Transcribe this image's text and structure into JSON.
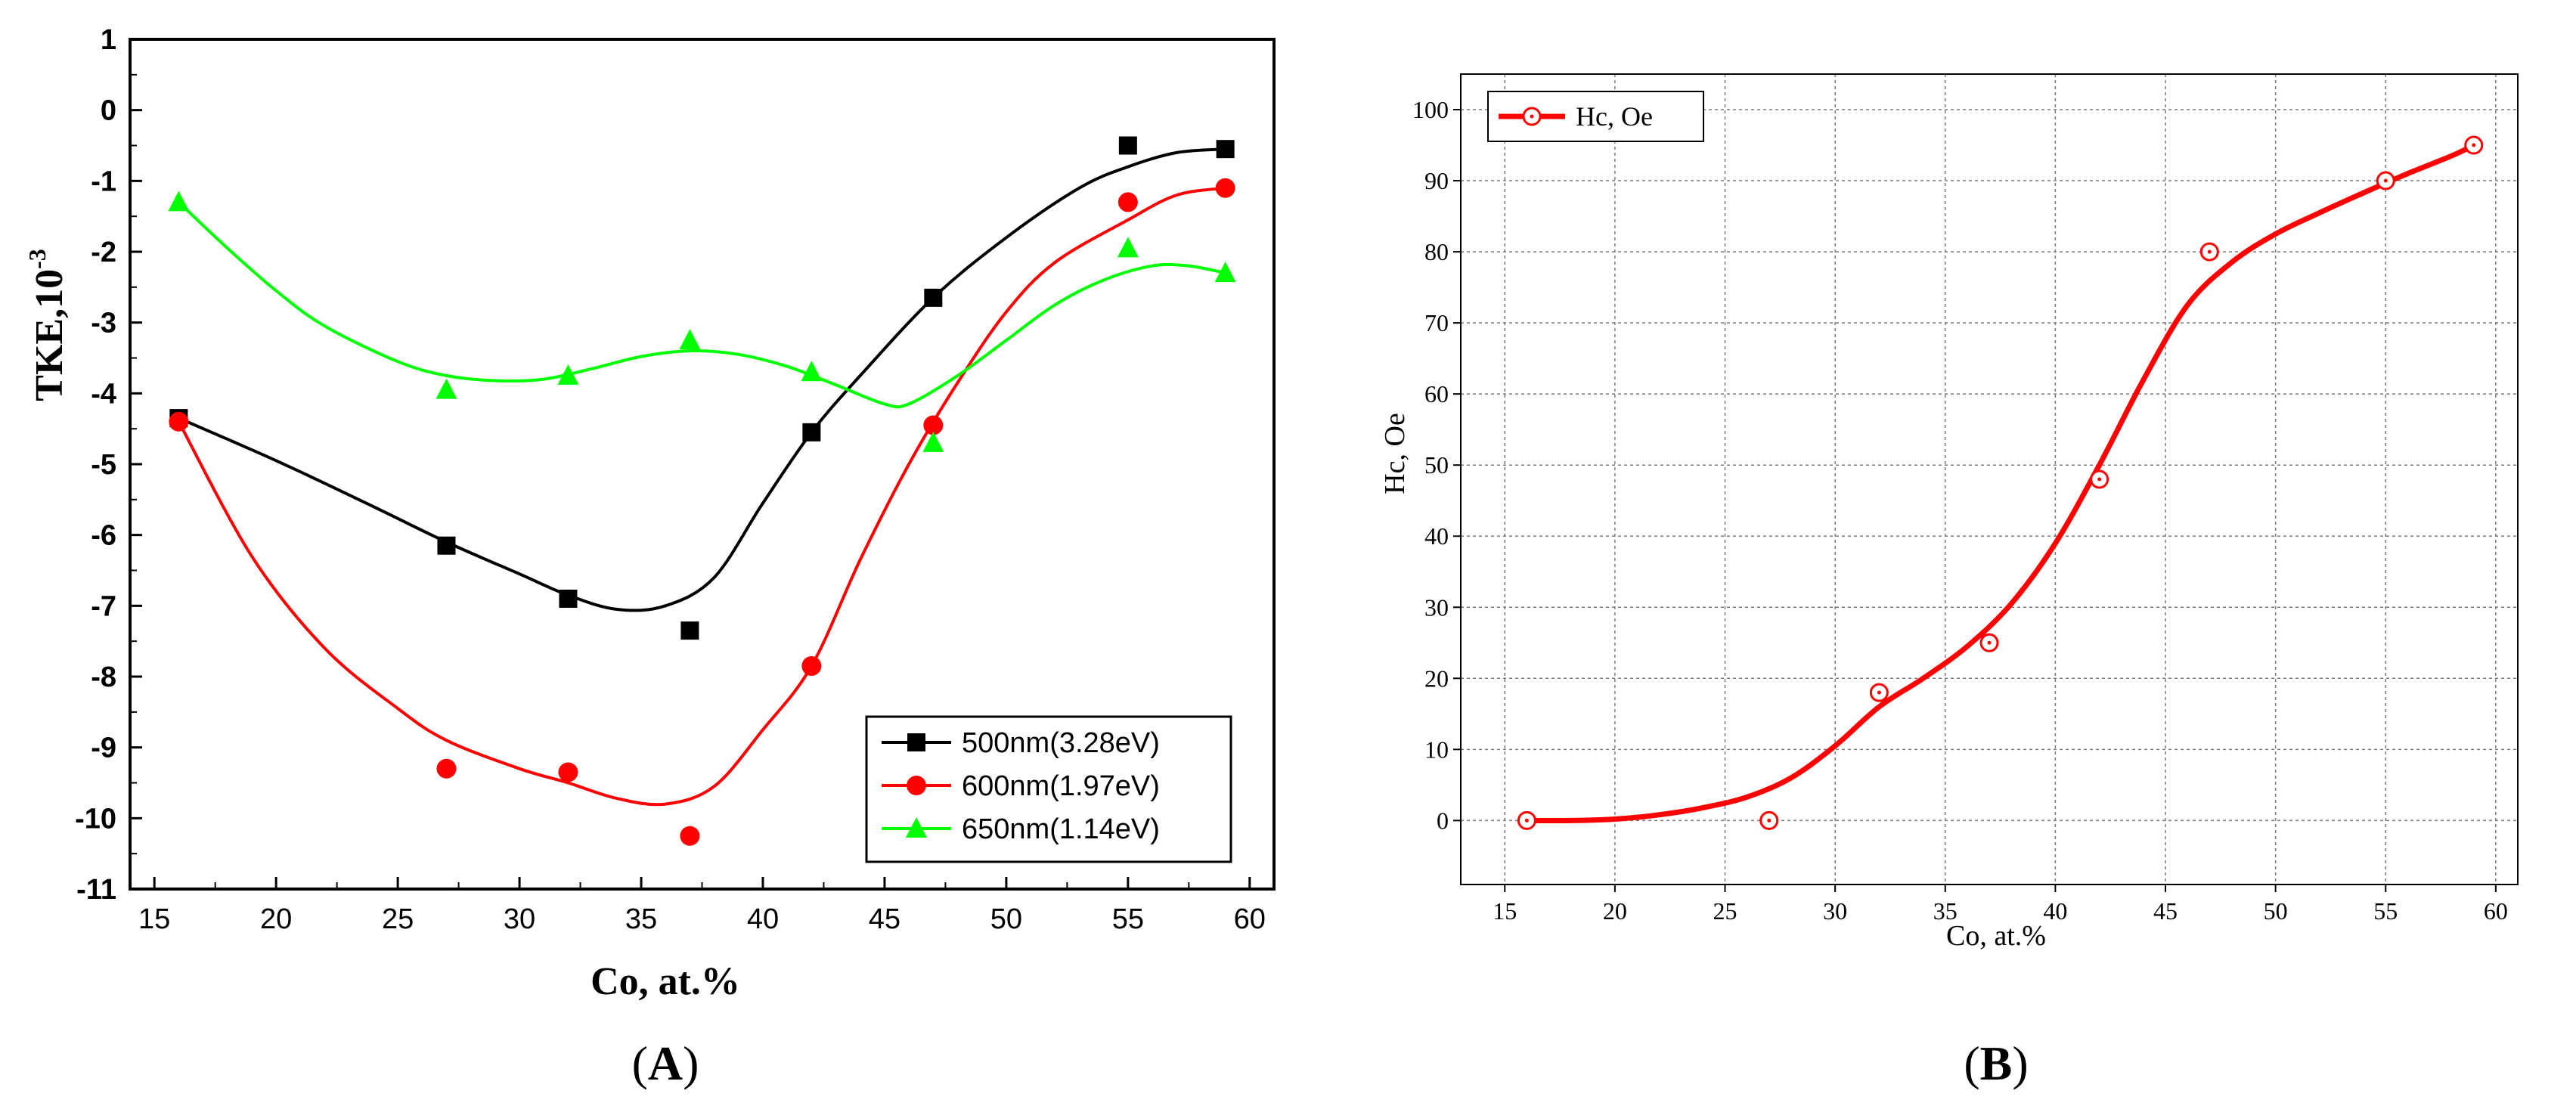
{
  "chart_data": [
    {
      "panel": "(A)",
      "panel_letter": "A",
      "type": "line",
      "title": "",
      "xlabel": "Co, at.%",
      "ylabel": "TKE,10",
      "ylabel_exponent": "-3",
      "xlim": [
        14,
        61
      ],
      "ylim": [
        -11,
        1
      ],
      "xticks": [
        15,
        20,
        25,
        30,
        35,
        40,
        45,
        50,
        55,
        60
      ],
      "yticks": [
        1,
        0,
        -1,
        -2,
        -3,
        -4,
        -5,
        -6,
        -7,
        -8,
        -9,
        -10,
        -11
      ],
      "grid": false,
      "legend_position": "bottom-right",
      "x": [
        16,
        27,
        32,
        37,
        42,
        47,
        55,
        59
      ],
      "series": [
        {
          "name": "500nm(3.28eV)",
          "color": "#000000",
          "marker": "square",
          "values": [
            -4.35,
            -6.15,
            -6.9,
            -7.35,
            -4.55,
            -2.65,
            -0.5,
            -0.55
          ],
          "curve": [
            [
              16,
              -4.35
            ],
            [
              20,
              -4.95
            ],
            [
              24,
              -5.6
            ],
            [
              27,
              -6.1
            ],
            [
              30,
              -6.55
            ],
            [
              32,
              -6.85
            ],
            [
              34,
              -7.05
            ],
            [
              36,
              -7.0
            ],
            [
              38,
              -6.6
            ],
            [
              40,
              -5.55
            ],
            [
              42,
              -4.55
            ],
            [
              44,
              -3.75
            ],
            [
              47,
              -2.65
            ],
            [
              50,
              -1.8
            ],
            [
              53,
              -1.1
            ],
            [
              55,
              -0.8
            ],
            [
              57,
              -0.6
            ],
            [
              59,
              -0.55
            ]
          ]
        },
        {
          "name": "600nm(1.97eV)",
          "color": "#ff0000",
          "marker": "circle",
          "values": [
            -4.4,
            -9.3,
            -9.35,
            -10.25,
            -7.85,
            -4.45,
            -1.3,
            -1.1
          ],
          "curve": [
            [
              16,
              -4.4
            ],
            [
              19,
              -6.3
            ],
            [
              22,
              -7.6
            ],
            [
              25,
              -8.45
            ],
            [
              27,
              -8.9
            ],
            [
              30,
              -9.3
            ],
            [
              32,
              -9.5
            ],
            [
              34,
              -9.72
            ],
            [
              36,
              -9.8
            ],
            [
              38,
              -9.55
            ],
            [
              40,
              -8.75
            ],
            [
              42,
              -7.85
            ],
            [
              44,
              -6.35
            ],
            [
              46,
              -5.0
            ],
            [
              48,
              -3.85
            ],
            [
              50,
              -2.85
            ],
            [
              52,
              -2.15
            ],
            [
              55,
              -1.55
            ],
            [
              57,
              -1.2
            ],
            [
              59,
              -1.1
            ]
          ]
        },
        {
          "name": "650nm(1.14eV)",
          "color": "#00ff00",
          "marker": "triangle",
          "values": [
            -1.3,
            -3.95,
            -3.75,
            -3.25,
            -3.7,
            -4.7,
            -1.95,
            -2.3
          ],
          "curve": [
            [
              16,
              -1.3
            ],
            [
              18,
              -1.95
            ],
            [
              20,
              -2.55
            ],
            [
              22,
              -3.05
            ],
            [
              25,
              -3.55
            ],
            [
              27,
              -3.75
            ],
            [
              29,
              -3.82
            ],
            [
              31,
              -3.8
            ],
            [
              33,
              -3.65
            ],
            [
              35,
              -3.48
            ],
            [
              37,
              -3.4
            ],
            [
              39,
              -3.45
            ],
            [
              41,
              -3.62
            ],
            [
              43,
              -3.88
            ],
            [
              45,
              -4.15
            ],
            [
              46,
              -4.15
            ],
            [
              48,
              -3.75
            ],
            [
              50,
              -3.25
            ],
            [
              52,
              -2.75
            ],
            [
              54,
              -2.4
            ],
            [
              56,
              -2.2
            ],
            [
              57.5,
              -2.2
            ],
            [
              59,
              -2.3
            ]
          ]
        }
      ]
    },
    {
      "panel": "(B)",
      "panel_letter": "B",
      "type": "line",
      "title": "",
      "xlabel": "Co, at.%",
      "ylabel": "Hc, Oe",
      "xlim": [
        13,
        61
      ],
      "ylim": [
        -9,
        105
      ],
      "xticks": [
        15,
        20,
        25,
        30,
        35,
        40,
        45,
        50,
        55,
        60
      ],
      "yticks": [
        0,
        10,
        20,
        30,
        40,
        50,
        60,
        70,
        80,
        90,
        100
      ],
      "grid": true,
      "legend_position": "top-left",
      "x": [
        16,
        27,
        32,
        37,
        42,
        47,
        55,
        59
      ],
      "series": [
        {
          "name": "Hc, Oe",
          "color": "#ff0000",
          "marker": "open-circle-dot",
          "values": [
            0,
            0,
            18,
            25,
            48,
            80,
            90,
            95
          ],
          "curve": [
            [
              16,
              0
            ],
            [
              18,
              0
            ],
            [
              20,
              0.2
            ],
            [
              22,
              0.8
            ],
            [
              24,
              1.8
            ],
            [
              26,
              3.3
            ],
            [
              28,
              6.0
            ],
            [
              30,
              10.5
            ],
            [
              32,
              16.0
            ],
            [
              34,
              20.0
            ],
            [
              36,
              24.5
            ],
            [
              38,
              30.5
            ],
            [
              40,
              39.0
            ],
            [
              42,
              50.0
            ],
            [
              44,
              62.0
            ],
            [
              46,
              72.5
            ],
            [
              48,
              78.5
            ],
            [
              50,
              82.5
            ],
            [
              52,
              85.5
            ],
            [
              54,
              88.3
            ],
            [
              56,
              91.0
            ],
            [
              58,
              93.5
            ],
            [
              59,
              95.0
            ]
          ]
        }
      ]
    }
  ]
}
